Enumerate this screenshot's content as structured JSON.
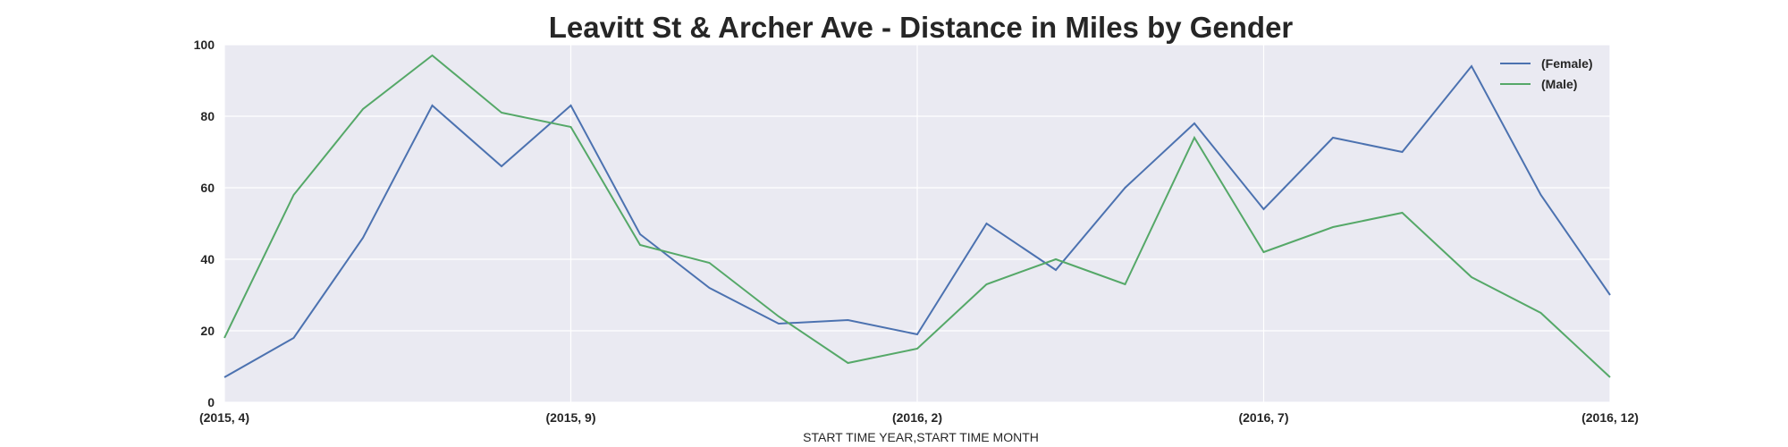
{
  "chart_data": {
    "type": "line",
    "title": "Leavitt St & Archer Ave - Distance in Miles by Gender",
    "xlabel": "START TIME YEAR,START TIME MONTH",
    "ylabel": "",
    "x": [
      "(2015, 4)",
      "(2015, 5)",
      "(2015, 6)",
      "(2015, 7)",
      "(2015, 8)",
      "(2015, 9)",
      "(2015, 10)",
      "(2015, 11)",
      "(2015, 12)",
      "(2016, 1)",
      "(2016, 2)",
      "(2016, 3)",
      "(2016, 4)",
      "(2016, 5)",
      "(2016, 6)",
      "(2016, 7)",
      "(2016, 8)",
      "(2016, 9)",
      "(2016, 10)",
      "(2016, 11)",
      "(2016, 12)"
    ],
    "xticks": [
      "(2015, 4)",
      "(2015, 9)",
      "(2016, 2)",
      "(2016, 7)",
      "(2016, 12)"
    ],
    "ylim": [
      0,
      100
    ],
    "yticks": [
      "0",
      "20",
      "40",
      "60",
      "80",
      "100"
    ],
    "grid": true,
    "legend_position": "top-right",
    "series": [
      {
        "name": "(Female)",
        "color": "#4c72b0",
        "values": [
          7,
          18,
          46,
          83,
          66,
          83,
          47,
          32,
          22,
          23,
          19,
          50,
          37,
          60,
          78,
          54,
          74,
          70,
          94,
          58,
          30
        ]
      },
      {
        "name": "(Male)",
        "color": "#55a868",
        "values": [
          18,
          58,
          82,
          97,
          81,
          77,
          44,
          39,
          24,
          11,
          15,
          33,
          40,
          33,
          74,
          42,
          49,
          53,
          35,
          25,
          7
        ]
      }
    ]
  },
  "colors": {
    "plot_background": "#eaeaf2",
    "grid": "#ffffff",
    "text": "#262626"
  }
}
